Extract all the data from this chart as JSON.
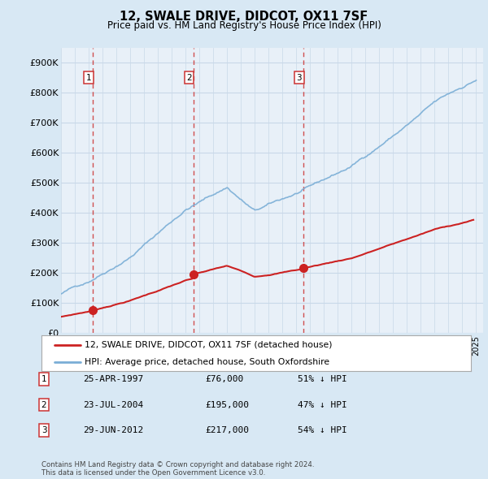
{
  "title": "12, SWALE DRIVE, DIDCOT, OX11 7SF",
  "subtitle": "Price paid vs. HM Land Registry's House Price Index (HPI)",
  "ylim": [
    0,
    950000
  ],
  "yticks": [
    0,
    100000,
    200000,
    300000,
    400000,
    500000,
    600000,
    700000,
    800000,
    900000
  ],
  "ytick_labels": [
    "£0",
    "£100K",
    "£200K",
    "£300K",
    "£400K",
    "£500K",
    "£600K",
    "£700K",
    "£800K",
    "£900K"
  ],
  "hpi_color": "#7aaed6",
  "price_color": "#cc2222",
  "grid_color": "#c8d8e8",
  "bg_color": "#d8e8f4",
  "plot_bg": "#e8f0f8",
  "sale_dates": [
    1997.32,
    2004.56,
    2012.5
  ],
  "sale_prices": [
    76000,
    195000,
    217000
  ],
  "vline_color": "#cc3333",
  "marker_color": "#cc2222",
  "legend_label_price": "12, SWALE DRIVE, DIDCOT, OX11 7SF (detached house)",
  "legend_label_hpi": "HPI: Average price, detached house, South Oxfordshire",
  "transaction_dates_str": [
    "25-APR-1997",
    "23-JUL-2004",
    "29-JUN-2012"
  ],
  "transaction_prices_str": [
    "£76,000",
    "£195,000",
    "£217,000"
  ],
  "transaction_pct": [
    "51% ↓ HPI",
    "47% ↓ HPI",
    "54% ↓ HPI"
  ],
  "footer": "Contains HM Land Registry data © Crown copyright and database right 2024.\nThis data is licensed under the Open Government Licence v3.0.",
  "xlim_start": 1995,
  "xlim_end": 2025.5
}
